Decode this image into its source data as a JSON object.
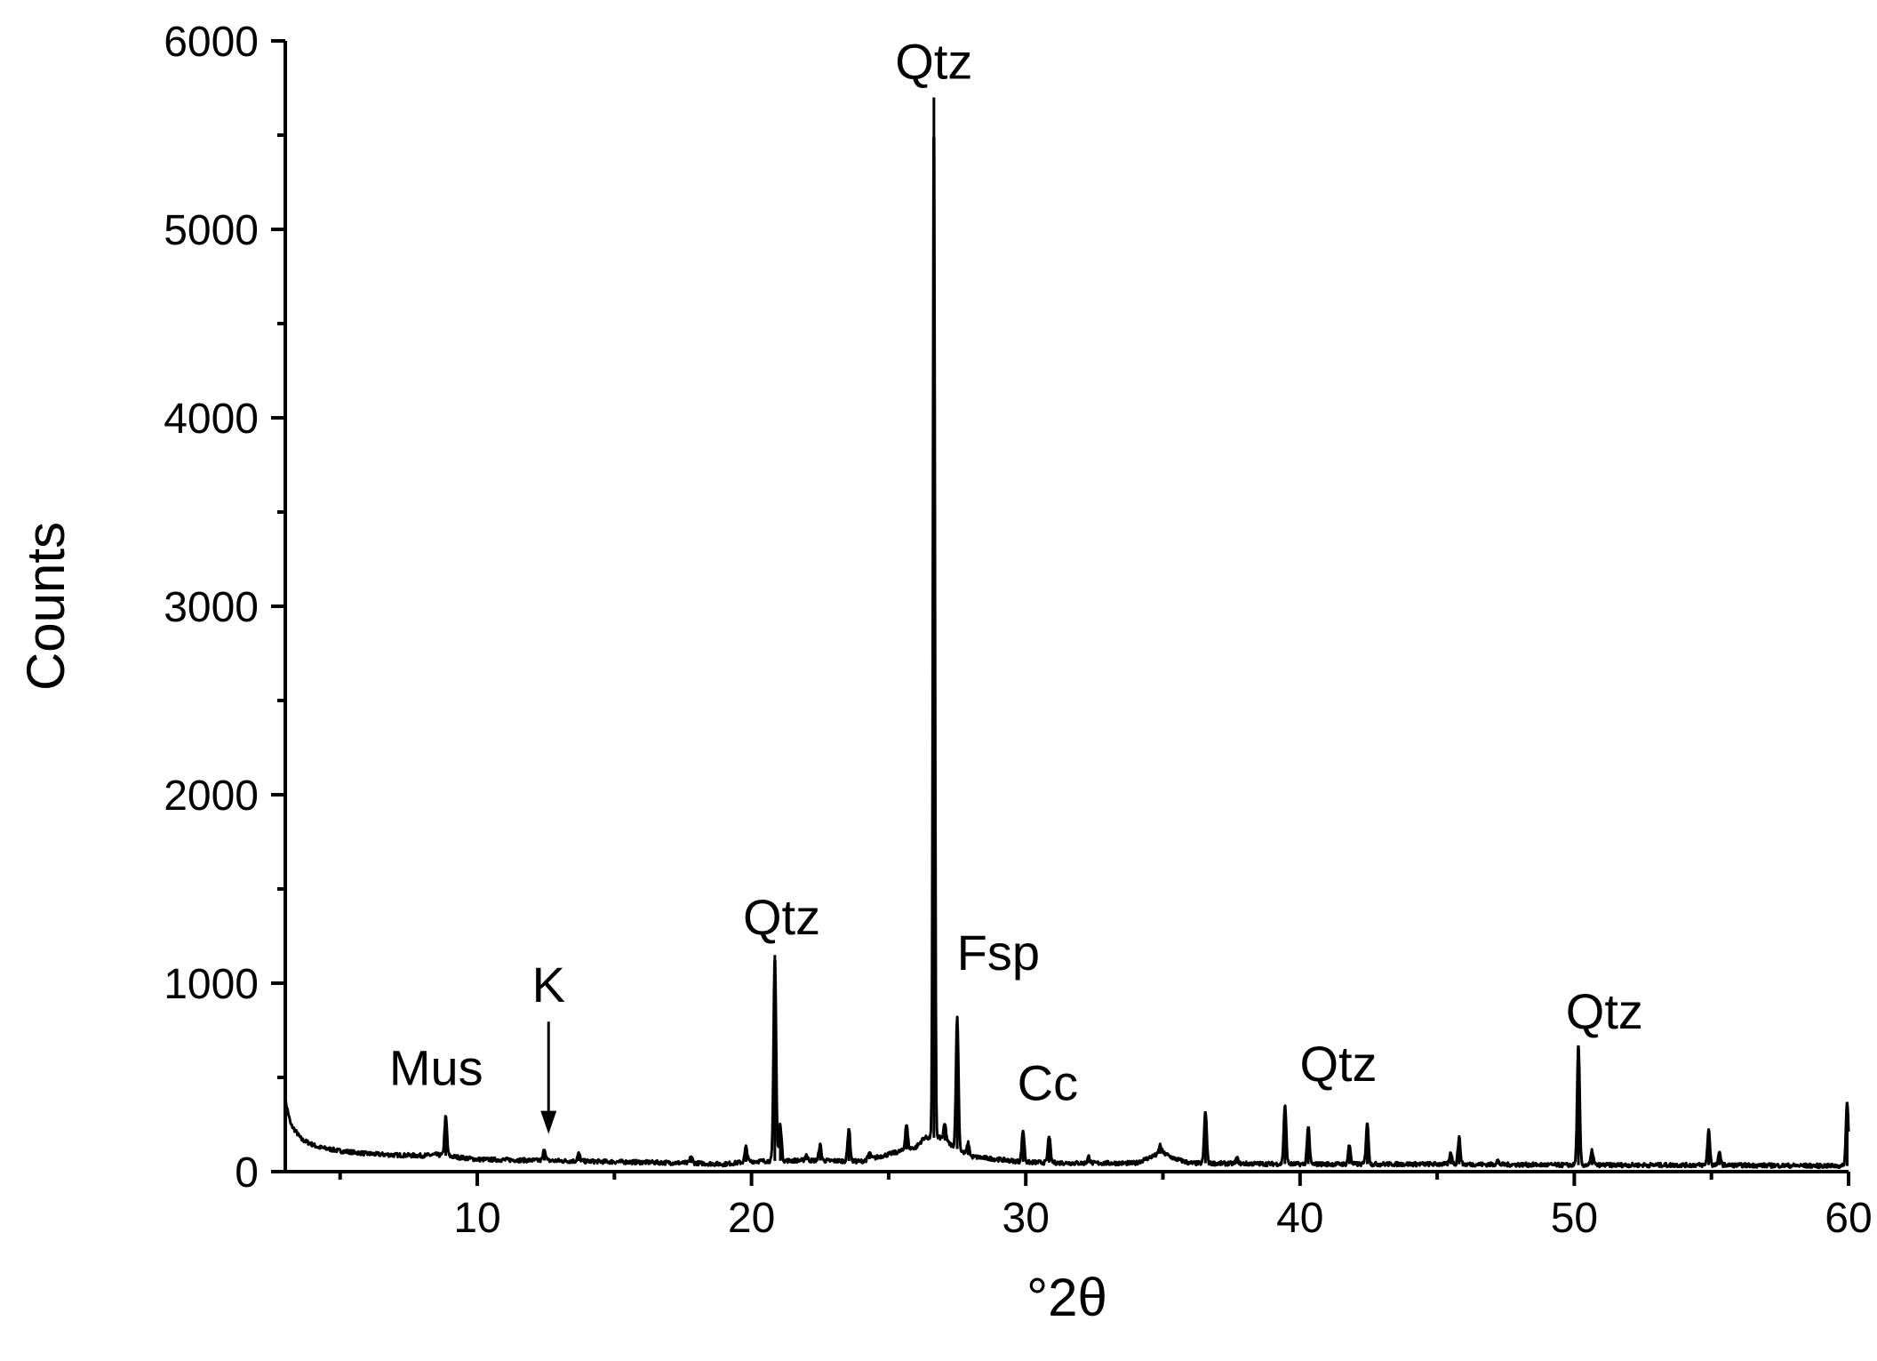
{
  "chart_data": {
    "type": "line",
    "xlabel": "°2θ",
    "ylabel": "Counts",
    "xlim": [
      3,
      60
    ],
    "ylim": [
      0,
      6000
    ],
    "x_ticks": [
      10,
      20,
      30,
      40,
      50,
      60
    ],
    "y_ticks": [
      0,
      1000,
      2000,
      3000,
      4000,
      5000,
      6000
    ],
    "grid": false,
    "baseline": [
      [
        3.0,
        380
      ],
      [
        3.2,
        250
      ],
      [
        3.6,
        170
      ],
      [
        4.2,
        130
      ],
      [
        5,
        110
      ],
      [
        6,
        95
      ],
      [
        7,
        88
      ],
      [
        8,
        85
      ],
      [
        8.5,
        90
      ],
      [
        10,
        65
      ],
      [
        12,
        60
      ],
      [
        14,
        55
      ],
      [
        16,
        50
      ],
      [
        18,
        45
      ],
      [
        19,
        40
      ],
      [
        20,
        55
      ],
      [
        22,
        60
      ],
      [
        24,
        55
      ],
      [
        26,
        130
      ],
      [
        26.3,
        180
      ],
      [
        26.9,
        180
      ],
      [
        27.5,
        120
      ],
      [
        28,
        80
      ],
      [
        30,
        50
      ],
      [
        32,
        45
      ],
      [
        34,
        45
      ],
      [
        34.6,
        80
      ],
      [
        35.0,
        100
      ],
      [
        35.4,
        70
      ],
      [
        36,
        45
      ],
      [
        40,
        40
      ],
      [
        45,
        40
      ],
      [
        50,
        35
      ],
      [
        55,
        35
      ],
      [
        60,
        30
      ]
    ],
    "peaks": [
      {
        "x": 8.85,
        "y": 290
      },
      {
        "x": 12.45,
        "y": 120
      },
      {
        "x": 13.7,
        "y": 95
      },
      {
        "x": 17.8,
        "y": 80
      },
      {
        "x": 19.8,
        "y": 130
      },
      {
        "x": 20.85,
        "y": 1150
      },
      {
        "x": 21.05,
        "y": 250
      },
      {
        "x": 22.0,
        "y": 90
      },
      {
        "x": 22.5,
        "y": 140
      },
      {
        "x": 23.55,
        "y": 230
      },
      {
        "x": 24.3,
        "y": 100
      },
      {
        "x": 25.2,
        "y": 95
      },
      {
        "x": 25.65,
        "y": 250
      },
      {
        "x": 26.65,
        "y": 5700
      },
      {
        "x": 27.05,
        "y": 250
      },
      {
        "x": 27.5,
        "y": 820
      },
      {
        "x": 27.9,
        "y": 150
      },
      {
        "x": 29.9,
        "y": 220
      },
      {
        "x": 30.85,
        "y": 190
      },
      {
        "x": 32.3,
        "y": 80
      },
      {
        "x": 34.9,
        "y": 140
      },
      {
        "x": 36.55,
        "y": 320
      },
      {
        "x": 37.7,
        "y": 70
      },
      {
        "x": 39.45,
        "y": 350
      },
      {
        "x": 40.3,
        "y": 240
      },
      {
        "x": 41.8,
        "y": 140
      },
      {
        "x": 42.45,
        "y": 260
      },
      {
        "x": 45.5,
        "y": 100
      },
      {
        "x": 45.8,
        "y": 180
      },
      {
        "x": 47.2,
        "y": 60
      },
      {
        "x": 50.15,
        "y": 670
      },
      {
        "x": 50.65,
        "y": 110
      },
      {
        "x": 54.9,
        "y": 220
      },
      {
        "x": 55.3,
        "y": 100
      },
      {
        "x": 59.95,
        "y": 370
      }
    ],
    "annotations": [
      {
        "text": "Mus",
        "x": 8.5,
        "y": 460
      },
      {
        "text": "K",
        "x": 12.6,
        "y": 900,
        "arrow_to": {
          "x": 12.6,
          "y": 200
        }
      },
      {
        "text": "Qtz",
        "x": 21.1,
        "y": 1260
      },
      {
        "text": "Qtz",
        "x": 26.65,
        "y": 5800
      },
      {
        "text": "Fsp",
        "x": 29.0,
        "y": 1070
      },
      {
        "text": "Cc",
        "x": 30.8,
        "y": 380
      },
      {
        "text": "Qtz",
        "x": 41.4,
        "y": 480
      },
      {
        "text": "Qtz",
        "x": 51.1,
        "y": 760
      }
    ]
  }
}
